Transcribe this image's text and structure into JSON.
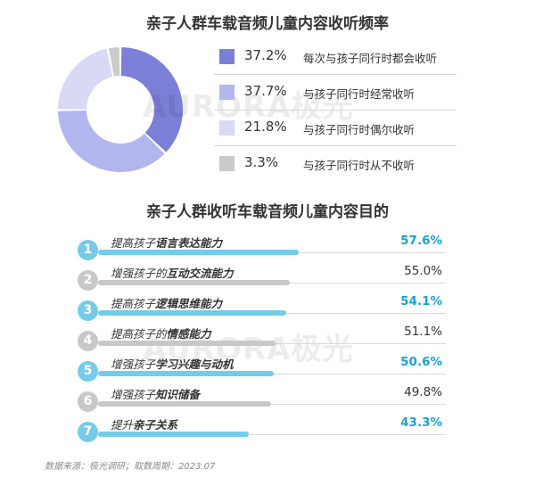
{
  "colors": {
    "highlight": "#1aa0d9",
    "plain_value": "#333333",
    "bar_highlight": "#74cbea",
    "bar_plain": "#c8c8c8",
    "num_highlight": "#74cbea",
    "num_plain": "#c8c8c8"
  },
  "watermark": "AURORA极光",
  "chart_data": [
    {
      "type": "pie",
      "title": "亲子人群车载音频儿童内容收听频率",
      "donut": true,
      "legend_position": "right",
      "series": [
        {
          "name": "每次与孩子同行时都会收听",
          "value": 37.2,
          "label": "37.2%",
          "color": "#7b7fd8"
        },
        {
          "name": "与孩子同行时经常收听",
          "value": 37.7,
          "label": "37.7%",
          "color": "#b3b5ef"
        },
        {
          "name": "与孩子同行时偶尔收听",
          "value": 21.8,
          "label": "21.8%",
          "color": "#d8d9f5"
        },
        {
          "name": "与孩子同行时从不收听",
          "value": 3.3,
          "label": "3.3%",
          "color": "#cbcbcb"
        }
      ]
    },
    {
      "type": "bar",
      "orientation": "horizontal",
      "title": "亲子人群收听车载音频儿童内容目的",
      "categories": [
        {
          "rank": "1",
          "prefix": "提高孩子",
          "emph": "语言表达能力",
          "value": 57.6,
          "label": "57.6%",
          "highlight": true
        },
        {
          "rank": "2",
          "prefix": "增强孩子的",
          "emph": "互动交流能力",
          "value": 55.0,
          "label": "55.0%",
          "highlight": false
        },
        {
          "rank": "3",
          "prefix": "提高孩子",
          "emph": "逻辑思维能力",
          "value": 54.1,
          "label": "54.1%",
          "highlight": true
        },
        {
          "rank": "4",
          "prefix": "提高孩子的",
          "emph": "情感能力",
          "value": 51.1,
          "label": "51.1%",
          "highlight": false
        },
        {
          "rank": "5",
          "prefix": "增强孩子",
          "emph": "学习兴趣与动机",
          "value": 50.6,
          "label": "50.6%",
          "highlight": true
        },
        {
          "rank": "6",
          "prefix": "增强孩子",
          "emph": "知识储备",
          "value": 49.8,
          "label": "49.8%",
          "highlight": false
        },
        {
          "rank": "7",
          "prefix": "提升",
          "emph": "亲子关系",
          "value": 43.3,
          "label": "43.3%",
          "highlight": true
        }
      ]
    }
  ],
  "source": "数据来源：极光调研；取数周期：2023.07"
}
